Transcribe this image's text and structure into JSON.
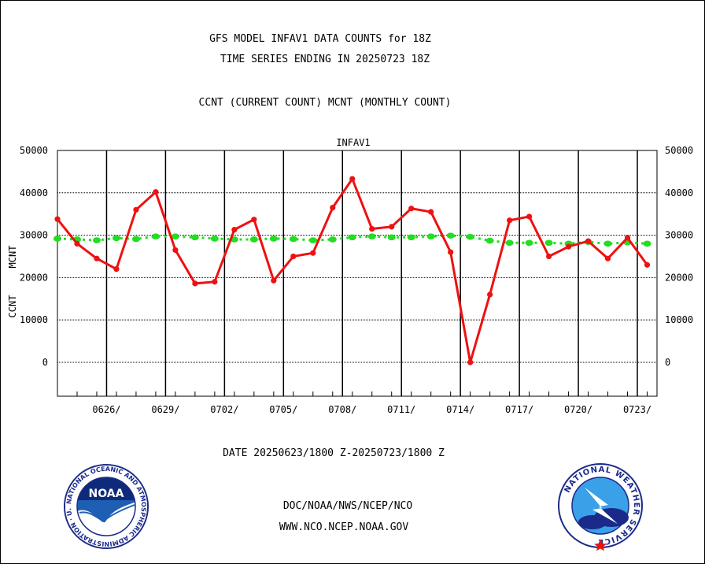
{
  "header": {
    "title_line1": "GFS MODEL INFAV1 DATA COUNTS for 18Z",
    "title_line2": "TIME SERIES ENDING IN 20250723 18Z",
    "subtitle": "CCNT (CURRENT COUNT) MCNT (MONTHLY COUNT)"
  },
  "footer": {
    "date_range": "DATE 20250623/1800 Z-20250723/1800 Z",
    "org_line": "DOC/NOAA/NWS/NCEP/NCO",
    "url_line": "WWW.NCO.NCEP.NOAA.GOV"
  },
  "logos": {
    "noaa_text": "NOAA",
    "noaa_ring": "NATIONAL OCEANIC AND ATMOSPHERIC ADMINISTRATION · U.S. DEPARTMENT OF COMMERCE ·",
    "nws_ring": "NATIONAL WEATHER SERVICE"
  },
  "colors": {
    "ccnt": "#ee1111",
    "mcnt": "#22dd22",
    "plot_title": "#2222bb",
    "footer_blue": "#2222bb",
    "footer_red": "#ee1111"
  },
  "chart_data": {
    "type": "line",
    "title": "INFAV1",
    "ylabel_left": "CCNT",
    "ylabel_right": "MCNT",
    "ylim": [
      -8000,
      50000
    ],
    "yticks": [
      0,
      10000,
      20000,
      30000,
      40000,
      50000
    ],
    "ytick_labels": [
      "0",
      "10000",
      "20000",
      "30000",
      "40000",
      "50000"
    ],
    "x_range": [
      0,
      30.5
    ],
    "xticks": [
      {
        "x": 2.5,
        "label": "0626/"
      },
      {
        "x": 5.5,
        "label": "0629/"
      },
      {
        "x": 8.5,
        "label": "0702/"
      },
      {
        "x": 11.5,
        "label": "0705/"
      },
      {
        "x": 14.5,
        "label": "0708/"
      },
      {
        "x": 17.5,
        "label": "0711/"
      },
      {
        "x": 20.5,
        "label": "0714/"
      },
      {
        "x": 23.5,
        "label": "0717/"
      },
      {
        "x": 26.5,
        "label": "0720/"
      },
      {
        "x": 29.5,
        "label": "0723/"
      }
    ],
    "x_day_index_0623": 0,
    "series": [
      {
        "name": "CCNT",
        "values": [
          33800,
          28000,
          24500,
          22000,
          36000,
          40200,
          26500,
          18600,
          19000,
          31300,
          33700,
          19300,
          25000,
          25800,
          36500,
          43300,
          31500,
          32000,
          36300,
          35500,
          26000,
          0,
          16000,
          33500,
          34400,
          25000,
          27300,
          28600,
          24500,
          29400,
          23000
        ]
      },
      {
        "name": "MCNT",
        "values": [
          29200,
          29000,
          28800,
          29300,
          29100,
          29700,
          29700,
          29500,
          29200,
          29000,
          29000,
          29200,
          29100,
          28800,
          29000,
          29500,
          29700,
          29500,
          29500,
          29700,
          29900,
          29600,
          28700,
          28200,
          28200,
          28200,
          28000,
          28400,
          28000,
          28300,
          28000
        ]
      }
    ],
    "legend": "left-axis"
  }
}
